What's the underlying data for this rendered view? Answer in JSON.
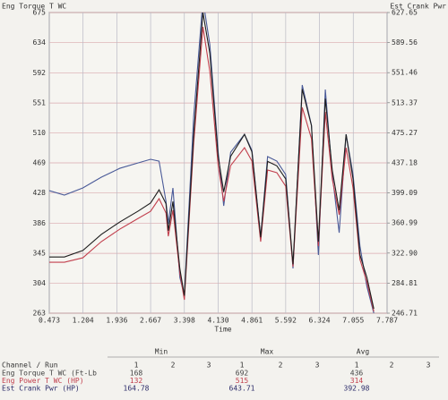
{
  "chart_data": {
    "type": "line",
    "y_label": "Eng Torque T WC",
    "y2_label": "Est Crank Pwr",
    "x_label": "Time",
    "xlim": [
      0.473,
      7.787
    ],
    "xticks": [
      0.473,
      1.204,
      1.936,
      2.667,
      3.398,
      {
        "value": 4.13,
        "label": "4.130"
      },
      4.861,
      5.592,
      6.324,
      7.055,
      7.787
    ],
    "ylim": [
      263,
      675
    ],
    "yticks": [
      263,
      304,
      345,
      386,
      428,
      469,
      510,
      551,
      592,
      634,
      675
    ],
    "y2lim": [
      246.71,
      627.65
    ],
    "y2ticks": [
      246.71,
      284.81,
      {
        "value": 322.9,
        "label": "322.90"
      },
      360.99,
      399.09,
      437.18,
      475.27,
      513.37,
      551.46,
      589.56,
      627.65
    ],
    "grid": true,
    "x": [
      0.473,
      0.8,
      1.2,
      1.6,
      2.0,
      2.4,
      2.667,
      2.85,
      3.0,
      3.05,
      3.15,
      3.3,
      3.398,
      3.6,
      3.8,
      3.95,
      4.13,
      4.25,
      4.4,
      4.7,
      4.861,
      5.05,
      5.2,
      5.4,
      5.592,
      5.75,
      5.95,
      6.15,
      6.3,
      6.45,
      6.6,
      6.75,
      6.9,
      7.05,
      7.2,
      7.35,
      7.5
    ],
    "series": [
      {
        "color": "#4a5a98",
        "axis": "y2",
        "values": [
          402.0,
          396.3,
          405.4,
          419.0,
          430.3,
          437.2,
          441.7,
          439.4,
          388.4,
          360.0,
          405.4,
          292.0,
          269.3,
          496.1,
          643.71,
          586.8,
          450.7,
          382.7,
          450.7,
          473.4,
          453.0,
          343.0,
          445.1,
          439.4,
          422.4,
          303.4,
          535.8,
          484.8,
          320.4,
          530.1,
          422.4,
          348.7,
          473.4,
          422.4,
          331.7,
          280.6,
          246.7
        ]
      },
      {
        "color": "#c2404e",
        "axis": "y2",
        "values": [
          311.3,
          311.3,
          316.9,
          337.4,
          353.2,
          366.9,
          375.9,
          391.8,
          373.7,
          344.2,
          377.1,
          297.7,
          263.7,
          462.1,
          609.5,
          552.8,
          433.7,
          388.4,
          433.7,
          456.4,
          439.4,
          337.4,
          428.1,
          424.7,
          407.6,
          305.6,
          507.5,
          467.8,
          331.7,
          501.8,
          416.7,
          371.4,
          456.4,
          405.4,
          314.7,
          286.3,
          248.9
        ]
      },
      {
        "color": "#1e1e1e",
        "values": [
          340,
          340,
          349,
          371,
          388,
          403,
          414,
          432,
          413,
          376,
          416,
          324,
          287,
          508,
          675,
          619,
          478,
          429,
          478,
          508,
          484,
          367,
          471,
          465,
          447,
          330,
          570,
          520,
          361,
          557,
          459,
          404,
          508,
          447,
          343,
          312,
          269
        ]
      }
    ]
  },
  "table": {
    "groups": [
      "Min",
      "Max",
      "Avg"
    ],
    "header": "Channel / Run",
    "runs": [
      "1",
      "2",
      "3"
    ],
    "rows": [
      {
        "label": "Eng Torque T WC (Ft-Lb",
        "color": "#444444",
        "values": [
          168,
          692,
          436
        ]
      },
      {
        "label": "Eng Power T WC (HP)",
        "color": "#c2404e",
        "values": [
          132,
          515,
          314
        ]
      },
      {
        "label": "Est Crank Pwr (HP)",
        "color": "#2c2c6a",
        "values": [
          164.78,
          643.71,
          392.98
        ]
      }
    ]
  }
}
